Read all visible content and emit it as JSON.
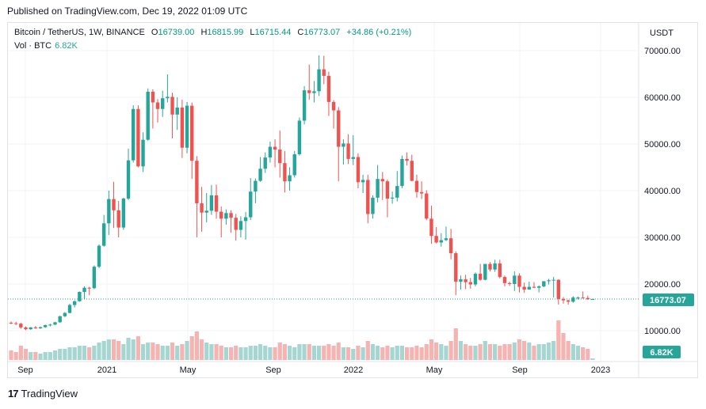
{
  "published": "Published on TradingView.com, Dec 19, 2022 01:09 UTC",
  "legend": {
    "symbol": "Bitcoin / TetherUS, 1W, BINANCE",
    "o_label": "O",
    "o_value": "16739.00",
    "h_label": "H",
    "h_value": "16815.99",
    "l_label": "L",
    "l_value": "16715.44",
    "c_label": "C",
    "c_value": "16773.07",
    "change": "+34.86 (+0.21%)",
    "vol_label": "Vol · BTC",
    "vol_value": "6.82K"
  },
  "colors": {
    "up": "#26a69a",
    "down": "#ef5350",
    "vol_up": "#a5d6d2",
    "vol_down": "#f5b3b1",
    "price_line": "#26a69a"
  },
  "price_axis": {
    "currency": "USDT",
    "ticks": [
      "70000.00",
      "60000.00",
      "50000.00",
      "40000.00",
      "30000.00",
      "20000.00",
      "10000.00"
    ]
  },
  "time_axis": {
    "labels": [
      "Sep",
      "2021",
      "May",
      "Sep",
      "2022",
      "May",
      "Sep",
      "2023"
    ]
  },
  "last_price_label": "16773.07",
  "last_volume_label": "6.82K",
  "footer": {
    "brand": "TradingView",
    "logo": "17"
  },
  "chart_data": {
    "type": "candlestick",
    "title": "Bitcoin / TetherUS, 1W, BINANCE",
    "ylabel": "USDT",
    "ylim": [
      0,
      74000
    ],
    "grid": true,
    "last_close": 16773.07,
    "candles": [
      [
        11700,
        12000,
        11400,
        11600,
        6
      ],
      [
        11600,
        11900,
        11200,
        11500,
        5
      ],
      [
        11500,
        11700,
        10400,
        10700,
        9
      ],
      [
        10700,
        10900,
        10100,
        10300,
        7
      ],
      [
        10300,
        10800,
        10200,
        10700,
        5
      ],
      [
        10700,
        11000,
        10400,
        10500,
        5
      ],
      [
        10500,
        10900,
        10400,
        10750,
        4
      ],
      [
        10750,
        11300,
        10600,
        11200,
        5
      ],
      [
        11200,
        11500,
        10900,
        11300,
        5
      ],
      [
        11300,
        11900,
        11200,
        11800,
        6
      ],
      [
        11800,
        13200,
        11700,
        13100,
        7
      ],
      [
        13100,
        14000,
        12900,
        13800,
        7
      ],
      [
        13800,
        15800,
        13700,
        15500,
        8
      ],
      [
        15500,
        16500,
        15000,
        16300,
        8
      ],
      [
        16300,
        18400,
        16200,
        18300,
        9
      ],
      [
        18300,
        19500,
        16700,
        19200,
        9
      ],
      [
        19200,
        19400,
        17600,
        19100,
        8
      ],
      [
        19100,
        24000,
        18900,
        23700,
        9
      ],
      [
        23700,
        28500,
        23400,
        28200,
        11
      ],
      [
        28200,
        34800,
        28000,
        33000,
        12
      ],
      [
        33000,
        40000,
        30500,
        38200,
        13
      ],
      [
        38200,
        41900,
        32000,
        35800,
        13
      ],
      [
        35800,
        37800,
        30000,
        32100,
        12
      ],
      [
        32100,
        38500,
        31600,
        38300,
        10
      ],
      [
        38300,
        49000,
        38000,
        46500,
        14
      ],
      [
        46500,
        58300,
        46000,
        57500,
        13
      ],
      [
        57500,
        58300,
        45000,
        45200,
        15
      ],
      [
        45200,
        52500,
        44000,
        50900,
        10
      ],
      [
        50900,
        61900,
        50700,
        61200,
        11
      ],
      [
        61200,
        61700,
        53300,
        58900,
        11
      ],
      [
        58900,
        59600,
        54600,
        57500,
        10
      ],
      [
        57500,
        61400,
        55800,
        59800,
        9
      ],
      [
        59800,
        64900,
        58900,
        60100,
        9
      ],
      [
        60100,
        61000,
        51200,
        56300,
        11
      ],
      [
        56300,
        60000,
        53000,
        57800,
        9
      ],
      [
        57800,
        59500,
        47000,
        49200,
        10
      ],
      [
        49200,
        59000,
        48000,
        58200,
        12
      ],
      [
        58200,
        58900,
        42500,
        46400,
        15
      ],
      [
        46400,
        47400,
        30000,
        37300,
        18
      ],
      [
        37300,
        40800,
        31200,
        35300,
        13
      ],
      [
        35300,
        39500,
        33200,
        35700,
        11
      ],
      [
        35700,
        41200,
        34800,
        39000,
        10
      ],
      [
        39000,
        41300,
        34000,
        35500,
        10
      ],
      [
        35500,
        36600,
        30000,
        34000,
        9
      ],
      [
        34000,
        36000,
        32700,
        35200,
        8
      ],
      [
        35200,
        35800,
        31000,
        34200,
        8
      ],
      [
        34200,
        35000,
        29300,
        31600,
        9
      ],
      [
        31600,
        34500,
        30000,
        33500,
        8
      ],
      [
        33500,
        35400,
        29500,
        34300,
        8
      ],
      [
        34300,
        42700,
        33700,
        39800,
        9
      ],
      [
        39800,
        42600,
        37300,
        42100,
        9
      ],
      [
        42100,
        47200,
        41900,
        44700,
        10
      ],
      [
        44700,
        48200,
        43800,
        47100,
        9
      ],
      [
        47100,
        50500,
        46000,
        49400,
        8
      ],
      [
        49400,
        51000,
        45000,
        48800,
        8
      ],
      [
        48800,
        52900,
        42800,
        45900,
        11
      ],
      [
        45900,
        48500,
        39600,
        42000,
        10
      ],
      [
        42000,
        45000,
        40000,
        43300,
        9
      ],
      [
        43300,
        48500,
        42800,
        47800,
        8
      ],
      [
        47800,
        55700,
        47500,
        55000,
        10
      ],
      [
        55000,
        62400,
        54200,
        61500,
        10
      ],
      [
        61500,
        67000,
        59500,
        60900,
        10
      ],
      [
        60900,
        63500,
        58900,
        61300,
        9
      ],
      [
        61300,
        69000,
        60300,
        66000,
        9
      ],
      [
        66000,
        68900,
        62800,
        64600,
        9
      ],
      [
        64600,
        65500,
        56000,
        59000,
        10
      ],
      [
        59000,
        59400,
        53300,
        57200,
        9
      ],
      [
        57200,
        57900,
        42000,
        49400,
        11
      ],
      [
        49400,
        51000,
        45600,
        50100,
        8
      ],
      [
        50100,
        52100,
        45700,
        46800,
        8
      ],
      [
        46800,
        51900,
        45500,
        47200,
        7
      ],
      [
        47200,
        48000,
        40500,
        41800,
        9
      ],
      [
        41800,
        43400,
        39500,
        42300,
        8
      ],
      [
        42300,
        43400,
        33000,
        35000,
        12
      ],
      [
        35000,
        39000,
        34000,
        38500,
        10
      ],
      [
        38500,
        45500,
        37500,
        42500,
        9
      ],
      [
        42500,
        44000,
        38000,
        42000,
        8
      ],
      [
        42000,
        42400,
        34300,
        38300,
        9
      ],
      [
        38300,
        39800,
        37200,
        38500,
        8
      ],
      [
        38500,
        44200,
        37700,
        41000,
        9
      ],
      [
        41000,
        47500,
        40500,
        46800,
        9
      ],
      [
        46800,
        48200,
        45400,
        46400,
        8
      ],
      [
        46400,
        47700,
        42000,
        42100,
        8
      ],
      [
        42100,
        43400,
        38500,
        39700,
        9
      ],
      [
        39700,
        42000,
        38200,
        39400,
        8
      ],
      [
        39400,
        40100,
        33700,
        34000,
        10
      ],
      [
        34000,
        36800,
        28600,
        30300,
        13
      ],
      [
        30300,
        32200,
        28700,
        28900,
        11
      ],
      [
        28900,
        30900,
        28000,
        29400,
        10
      ],
      [
        29400,
        32300,
        29200,
        29800,
        9
      ],
      [
        29800,
        31800,
        25300,
        26600,
        12
      ],
      [
        26600,
        27000,
        17600,
        20500,
        20
      ],
      [
        20500,
        21800,
        18800,
        21000,
        12
      ],
      [
        21000,
        22000,
        18900,
        20400,
        10
      ],
      [
        20400,
        21300,
        19000,
        19900,
        9
      ],
      [
        19900,
        22500,
        19500,
        22200,
        9
      ],
      [
        22200,
        24300,
        20700,
        20900,
        10
      ],
      [
        20900,
        24300,
        20800,
        24300,
        12
      ],
      [
        24300,
        24700,
        22700,
        23100,
        10
      ],
      [
        23100,
        25200,
        22600,
        24400,
        10
      ],
      [
        24400,
        25200,
        21200,
        21500,
        9
      ],
      [
        21500,
        21800,
        19500,
        20200,
        10
      ],
      [
        20200,
        20500,
        19600,
        20000,
        10
      ],
      [
        20000,
        22700,
        18500,
        21800,
        11
      ],
      [
        21800,
        22300,
        18200,
        19400,
        13
      ],
      [
        19400,
        20300,
        18100,
        18800,
        12
      ],
      [
        18800,
        20500,
        18800,
        19400,
        11
      ],
      [
        19400,
        20400,
        19100,
        19200,
        9
      ],
      [
        19200,
        19700,
        18200,
        19500,
        10
      ],
      [
        19500,
        20600,
        19300,
        20600,
        10
      ],
      [
        20600,
        21100,
        19900,
        20800,
        11
      ],
      [
        20800,
        21500,
        17100,
        20900,
        12
      ],
      [
        20900,
        21000,
        15600,
        16800,
        25
      ],
      [
        16800,
        17200,
        15800,
        16500,
        17
      ],
      [
        16500,
        16600,
        15600,
        16200,
        12
      ],
      [
        16200,
        17400,
        16000,
        17100,
        10
      ],
      [
        17100,
        17300,
        16700,
        17100,
        9
      ],
      [
        17100,
        18400,
        16900,
        17000,
        8
      ],
      [
        17000,
        17500,
        16600,
        16739,
        7
      ],
      [
        16739,
        16816,
        16715,
        16773,
        1
      ]
    ]
  }
}
